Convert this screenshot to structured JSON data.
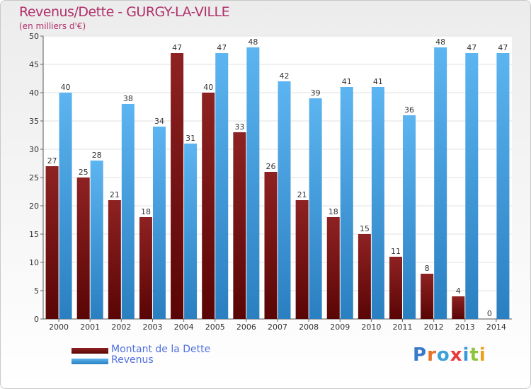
{
  "title": "Revenus/Dette - GURGY-LA-VILLE",
  "subtitle": "(en milliers d'€)",
  "logo": {
    "text": "Proxiti",
    "colors": [
      "#3a78c8",
      "#e8742a",
      "#3ea0d8",
      "#e83a3a",
      "#3a9ad8",
      "#8cc43a",
      "#e8a21a"
    ]
  },
  "colors": {
    "dette": "#8b1a1a",
    "revenus": "#3b9ee8",
    "axis_text": "#333333",
    "grid": "#e2e2e2"
  },
  "chart_data": {
    "type": "bar",
    "title": "Revenus/Dette - GURGY-LA-VILLE",
    "subtitle": "(en milliers d'€)",
    "categories": [
      "2000",
      "2001",
      "2002",
      "2003",
      "2004",
      "2005",
      "2006",
      "2007",
      "2008",
      "2009",
      "2010",
      "2011",
      "2012",
      "2013",
      "2014"
    ],
    "series": [
      {
        "name": "Montant de la Dette",
        "values": [
          27,
          25,
          21,
          18,
          47,
          40,
          33,
          26,
          21,
          18,
          15,
          11,
          8,
          4,
          0
        ]
      },
      {
        "name": "Revenus",
        "values": [
          40,
          28,
          38,
          34,
          31,
          47,
          48,
          42,
          39,
          41,
          41,
          36,
          48,
          47,
          47
        ]
      }
    ],
    "ylim": [
      0,
      50
    ],
    "yticks": [
      0,
      5,
      10,
      15,
      20,
      25,
      30,
      35,
      40,
      45,
      50
    ],
    "grid": true,
    "legend_position": "bottom-left"
  }
}
